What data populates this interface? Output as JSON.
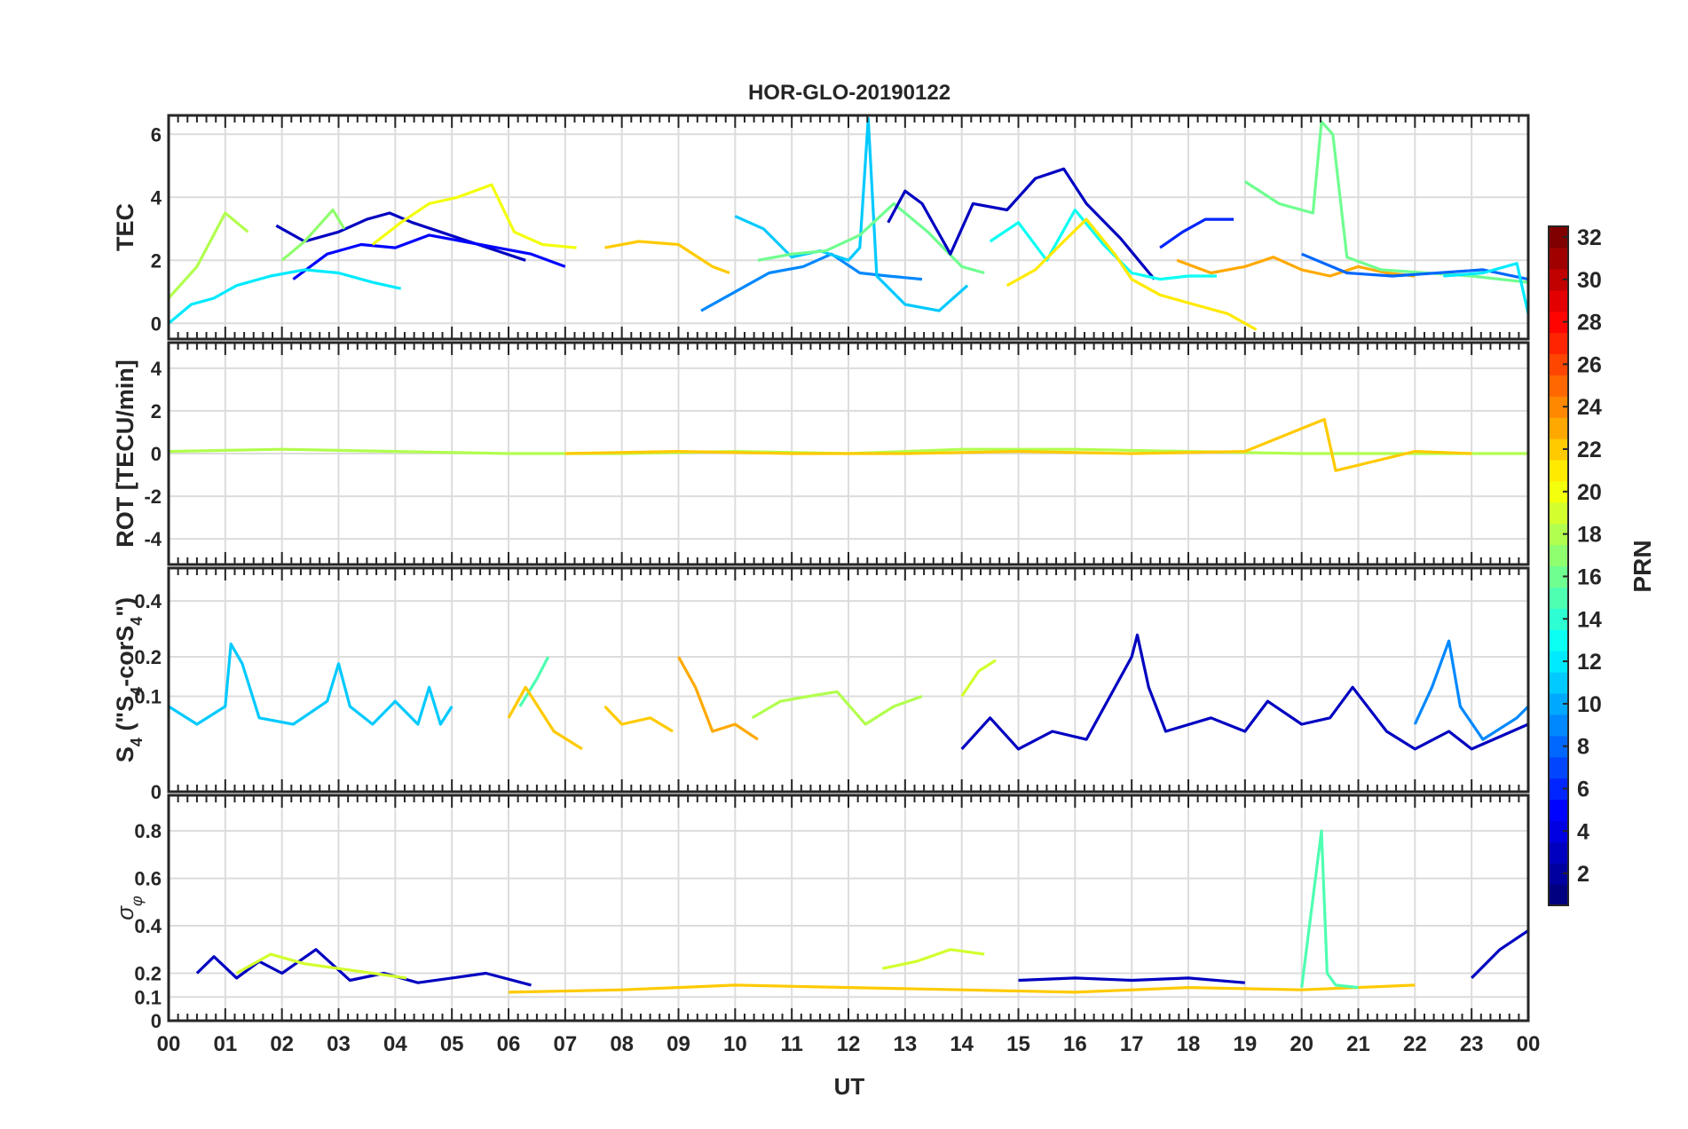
{
  "chart_data": [
    {
      "type": "line",
      "title": "HOR-GLO-20190122",
      "ylabel": "TEC",
      "xlabel": "UT",
      "xlim": [
        0,
        24
      ],
      "ylim": [
        -0.5,
        6.6
      ],
      "yticks": [
        "0",
        "2",
        "4",
        "6"
      ],
      "ytick_values": [
        0,
        2,
        4,
        6
      ],
      "grid": true,
      "series_color_by": "PRN",
      "series": [
        {
          "prn": 3,
          "x": [
            1.9,
            2.4,
            3.0,
            3.5,
            3.9,
            4.3,
            4.8,
            5.3,
            5.8,
            6.3
          ],
          "y": [
            3.1,
            2.6,
            2.9,
            3.3,
            3.5,
            3.2,
            2.9,
            2.6,
            2.3,
            2.0
          ]
        },
        {
          "prn": 5,
          "x": [
            2.2,
            2.8,
            3.4,
            4.0,
            4.6,
            5.2,
            5.8,
            6.4,
            7.0
          ],
          "y": [
            1.4,
            2.2,
            2.5,
            2.4,
            2.8,
            2.6,
            2.4,
            2.2,
            1.8
          ]
        },
        {
          "prn": 12,
          "x": [
            0.0,
            0.4,
            0.8,
            1.2,
            1.8,
            2.4,
            3.0,
            3.6,
            4.1
          ],
          "y": [
            0.0,
            0.6,
            0.8,
            1.2,
            1.5,
            1.7,
            1.6,
            1.3,
            1.1
          ]
        },
        {
          "prn": 20,
          "x": [
            3.6,
            4.1,
            4.6,
            5.1,
            5.7,
            6.1,
            6.6,
            7.2
          ],
          "y": [
            2.5,
            3.2,
            3.8,
            4.0,
            4.4,
            2.9,
            2.5,
            2.4
          ]
        },
        {
          "prn": 18,
          "x": [
            0.0,
            0.5,
            1.0,
            1.4
          ],
          "y": [
            0.8,
            1.8,
            3.5,
            2.9
          ]
        },
        {
          "prn": 17,
          "x": [
            2.0,
            2.4,
            2.9,
            3.1
          ],
          "y": [
            2.0,
            2.6,
            3.6,
            3.0
          ]
        },
        {
          "prn": 22,
          "x": [
            7.7,
            8.3,
            9.0,
            9.6,
            9.9
          ],
          "y": [
            2.4,
            2.6,
            2.5,
            1.8,
            1.6
          ]
        },
        {
          "prn": 9,
          "x": [
            9.4,
            10.0,
            10.6,
            11.2,
            11.7,
            12.2,
            12.7,
            13.3
          ],
          "y": [
            0.4,
            1.0,
            1.6,
            1.8,
            2.2,
            1.6,
            1.5,
            1.4
          ]
        },
        {
          "prn": 11,
          "x": [
            10.0,
            10.5,
            11.0,
            11.5,
            12.0,
            12.2,
            12.35,
            12.5,
            13.0,
            13.6,
            14.1
          ],
          "y": [
            3.4,
            3.0,
            2.1,
            2.3,
            2.0,
            2.4,
            6.5,
            1.5,
            0.6,
            0.4,
            1.2
          ]
        },
        {
          "prn": 16,
          "x": [
            10.4,
            11.0,
            11.6,
            12.2,
            12.8,
            13.4,
            14.0,
            14.4
          ],
          "y": [
            2.0,
            2.2,
            2.3,
            2.8,
            3.8,
            2.9,
            1.8,
            1.6
          ]
        },
        {
          "prn": 3,
          "x": [
            12.7,
            13.0,
            13.3,
            13.8,
            14.2,
            14.8,
            15.3,
            15.8,
            16.2,
            16.8,
            17.4
          ],
          "y": [
            3.2,
            4.2,
            3.8,
            2.2,
            3.8,
            3.6,
            4.6,
            4.9,
            3.8,
            2.7,
            1.4
          ]
        },
        {
          "prn": 13,
          "x": [
            14.5,
            15.0,
            15.5,
            16.0,
            16.5,
            17.0,
            17.5,
            18.0,
            18.5
          ],
          "y": [
            2.6,
            3.2,
            2.0,
            3.6,
            2.5,
            1.6,
            1.4,
            1.5,
            1.5
          ]
        },
        {
          "prn": 21,
          "x": [
            14.8,
            15.3,
            15.8,
            16.2,
            16.7,
            17.0,
            17.5,
            18.1,
            18.7,
            19.2
          ],
          "y": [
            1.2,
            1.7,
            2.6,
            3.3,
            2.2,
            1.4,
            0.9,
            0.6,
            0.3,
            -0.2
          ]
        },
        {
          "prn": 6,
          "x": [
            17.5,
            17.9,
            18.3,
            18.8
          ],
          "y": [
            2.4,
            2.9,
            3.3,
            3.3
          ]
        },
        {
          "prn": 23,
          "x": [
            17.8,
            18.4,
            19.0,
            19.5,
            20.0,
            20.5,
            21.0,
            21.5,
            22.0
          ],
          "y": [
            2.0,
            1.6,
            1.8,
            2.1,
            1.7,
            1.5,
            1.8,
            1.6,
            1.5
          ]
        },
        {
          "prn": 16,
          "x": [
            19.0,
            19.6,
            20.2,
            20.35,
            20.55,
            20.8,
            21.4,
            22.2,
            23.0,
            24.0
          ],
          "y": [
            4.5,
            3.8,
            3.5,
            6.4,
            6.0,
            2.1,
            1.7,
            1.6,
            1.5,
            1.3
          ]
        },
        {
          "prn": 8,
          "x": [
            20.0,
            20.8,
            21.6,
            22.4,
            23.2,
            24.0
          ],
          "y": [
            2.2,
            1.6,
            1.5,
            1.6,
            1.7,
            1.4
          ]
        },
        {
          "prn": 12,
          "x": [
            22.5,
            23.2,
            23.8,
            24.0
          ],
          "y": [
            1.5,
            1.6,
            1.9,
            0.3
          ]
        }
      ]
    },
    {
      "type": "line",
      "ylabel": "ROT [TECU/min]",
      "xlabel": "UT",
      "xlim": [
        0,
        24
      ],
      "ylim": [
        -5.2,
        5.2
      ],
      "yticks": [
        "-4",
        "-2",
        "0",
        "2",
        "4"
      ],
      "ytick_values": [
        -4,
        -2,
        0,
        2,
        4
      ],
      "grid": true,
      "series_color_by": "PRN",
      "series": [
        {
          "prn": 18,
          "x": [
            0,
            2,
            4,
            6,
            8,
            10,
            12,
            14,
            16,
            18,
            20,
            22,
            24
          ],
          "y": [
            0.1,
            0.2,
            0.1,
            0,
            0,
            0.1,
            0,
            0.2,
            0.2,
            0.1,
            0,
            0,
            0
          ]
        },
        {
          "prn": 22,
          "x": [
            7.0,
            9.0,
            11.0,
            13.0,
            15.0,
            17.0,
            19.0,
            20.4,
            20.6,
            22.0,
            23.0
          ],
          "y": [
            0,
            0.1,
            0,
            0,
            0.1,
            0,
            0.1,
            1.6,
            -0.8,
            0.1,
            0
          ]
        }
      ]
    },
    {
      "type": "line",
      "ylabel": "S4 (\"S4-corS4\")",
      "ylabel_parts": [
        "S",
        "4",
        " (\"S",
        "4",
        "-corS",
        "4",
        "\")"
      ],
      "xlabel": "UT",
      "xlim": [
        0,
        24
      ],
      "ylim": [
        0,
        0.55
      ],
      "yticks": [
        "0",
        "0.1",
        "0.2",
        "0.4"
      ],
      "ytick_values": [
        0,
        0.1,
        0.2,
        0.4
      ],
      "grid": true,
      "y_scale": "sqrt",
      "series_color_by": "PRN",
      "series": [
        {
          "prn": 11,
          "x": [
            0.0,
            0.5,
            1.0,
            1.1,
            1.3,
            1.6,
            2.2,
            2.8,
            3.0,
            3.2,
            3.6,
            4.0,
            4.4,
            4.6,
            4.8,
            5.0
          ],
          "y": [
            0.08,
            0.05,
            0.08,
            0.24,
            0.18,
            0.06,
            0.05,
            0.09,
            0.18,
            0.08,
            0.05,
            0.09,
            0.05,
            0.12,
            0.05,
            0.08
          ]
        },
        {
          "prn": 15,
          "x": [
            6.2,
            6.5,
            6.7
          ],
          "y": [
            0.08,
            0.14,
            0.2
          ]
        },
        {
          "prn": 22,
          "x": [
            6.0,
            6.3,
            6.8,
            7.3
          ],
          "y": [
            0.06,
            0.12,
            0.04,
            0.02
          ]
        },
        {
          "prn": 22,
          "x": [
            7.7,
            8.0,
            8.5,
            8.9
          ],
          "y": [
            0.08,
            0.05,
            0.06,
            0.04
          ]
        },
        {
          "prn": 23,
          "x": [
            9.0,
            9.3,
            9.6,
            10.0,
            10.4
          ],
          "y": [
            0.2,
            0.12,
            0.04,
            0.05,
            0.03
          ]
        },
        {
          "prn": 18,
          "x": [
            10.3,
            10.8,
            11.3,
            11.8,
            12.3,
            12.8,
            13.3
          ],
          "y": [
            0.06,
            0.09,
            0.1,
            0.11,
            0.05,
            0.08,
            0.1
          ]
        },
        {
          "prn": 19,
          "x": [
            14.0,
            14.3,
            14.6
          ],
          "y": [
            0.1,
            0.16,
            0.19
          ]
        },
        {
          "prn": 3,
          "x": [
            14.0,
            14.5,
            15.0,
            15.6,
            16.2,
            17.0,
            17.1,
            17.3,
            17.6,
            18.4,
            19.0,
            19.4,
            20.0,
            20.5,
            20.9,
            21.5,
            22.0,
            22.6,
            23.0,
            24.0
          ],
          "y": [
            0.02,
            0.06,
            0.02,
            0.04,
            0.03,
            0.2,
            0.27,
            0.12,
            0.04,
            0.06,
            0.04,
            0.09,
            0.05,
            0.06,
            0.12,
            0.04,
            0.02,
            0.04,
            0.02,
            0.05
          ]
        },
        {
          "prn": 9,
          "x": [
            22.0,
            22.3,
            22.6,
            22.8,
            23.2,
            23.8,
            24.0
          ],
          "y": [
            0.05,
            0.12,
            0.25,
            0.08,
            0.03,
            0.06,
            0.08
          ]
        }
      ]
    },
    {
      "type": "line",
      "ylabel": "σφ",
      "ylabel_parts": [
        "σ",
        "φ"
      ],
      "xlabel": "UT",
      "xlim": [
        0,
        24
      ],
      "ylim": [
        0,
        0.95
      ],
      "yticks": [
        "0",
        "0.1",
        "0.2",
        "0.4",
        "0.6",
        "0.8"
      ],
      "ytick_values": [
        0,
        0.1,
        0.2,
        0.4,
        0.6,
        0.8
      ],
      "grid": true,
      "series_color_by": "PRN",
      "xticks": [
        "00",
        "01",
        "02",
        "03",
        "04",
        "05",
        "06",
        "07",
        "08",
        "09",
        "10",
        "11",
        "12",
        "13",
        "14",
        "15",
        "16",
        "17",
        "18",
        "19",
        "20",
        "21",
        "22",
        "23",
        "00"
      ],
      "series": [
        {
          "prn": 3,
          "x": [
            0.5,
            0.8,
            1.2,
            1.6,
            2.0,
            2.6,
            3.2,
            3.8,
            4.4,
            5.0,
            5.6,
            6.4
          ],
          "y": [
            0.2,
            0.27,
            0.18,
            0.25,
            0.2,
            0.3,
            0.17,
            0.2,
            0.16,
            0.18,
            0.2,
            0.15
          ]
        },
        {
          "prn": 19,
          "x": [
            1.2,
            1.8,
            2.4,
            3.0,
            3.6,
            4.2
          ],
          "y": [
            0.2,
            0.28,
            0.24,
            0.22,
            0.2,
            0.18
          ]
        },
        {
          "prn": 19,
          "x": [
            12.6,
            13.2,
            13.8,
            14.4
          ],
          "y": [
            0.22,
            0.25,
            0.3,
            0.28
          ]
        },
        {
          "prn": 22,
          "x": [
            6.0,
            8.0,
            9.0,
            10.0,
            12.0,
            14.0,
            16.0,
            18.0,
            20.0,
            22.0
          ],
          "y": [
            0.12,
            0.13,
            0.14,
            0.15,
            0.14,
            0.13,
            0.12,
            0.14,
            0.13,
            0.15
          ]
        },
        {
          "prn": 3,
          "x": [
            15.0,
            16.0,
            17.0,
            18.0,
            19.0
          ],
          "y": [
            0.17,
            0.18,
            0.17,
            0.18,
            0.16
          ]
        },
        {
          "prn": 15,
          "x": [
            20.0,
            20.35,
            20.45,
            20.6,
            21.0
          ],
          "y": [
            0.14,
            0.8,
            0.2,
            0.15,
            0.14
          ]
        },
        {
          "prn": 3,
          "x": [
            23.0,
            23.5,
            24.0
          ],
          "y": [
            0.18,
            0.3,
            0.38
          ]
        }
      ]
    },
    {
      "type": "colorbar",
      "label": "PRN",
      "range": [
        1,
        32
      ],
      "ticks": [
        "2",
        "4",
        "6",
        "8",
        "10",
        "12",
        "14",
        "16",
        "18",
        "20",
        "22",
        "24",
        "26",
        "28",
        "30",
        "32"
      ],
      "tick_values": [
        2,
        4,
        6,
        8,
        10,
        12,
        14,
        16,
        18,
        20,
        22,
        24,
        26,
        28,
        30,
        32
      ],
      "colormap": "jet"
    }
  ]
}
